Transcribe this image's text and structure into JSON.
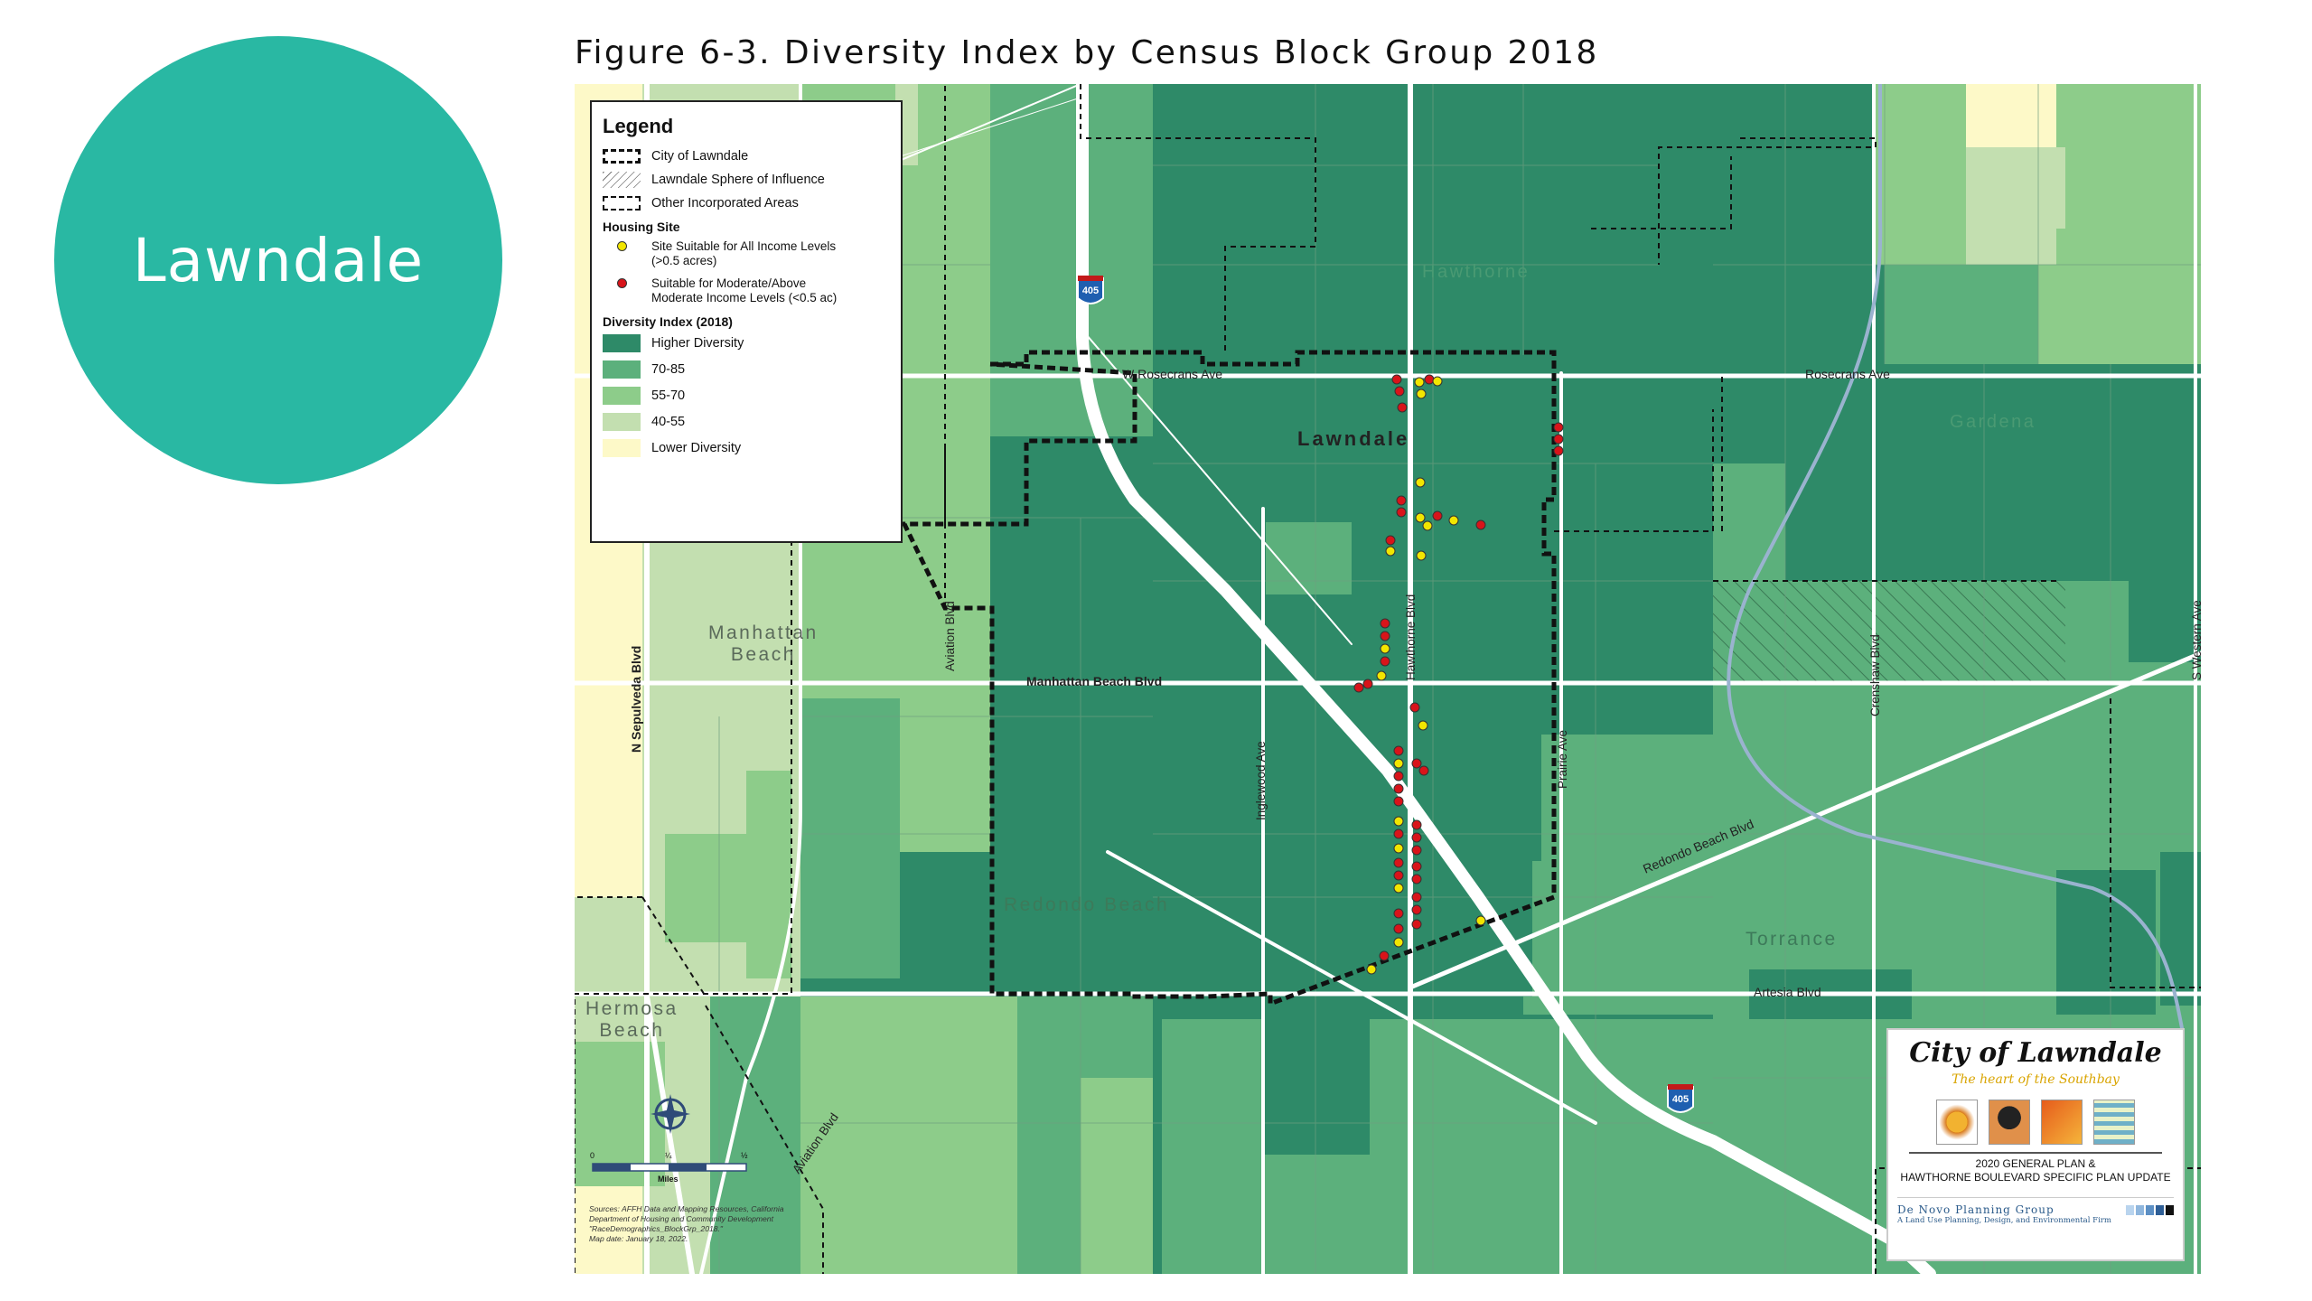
{
  "slide": {
    "heading": "Lawndale"
  },
  "figure": {
    "title": "Figure 6-3. Diversity Index by Census Block Group 2018"
  },
  "legend": {
    "title": "Legend",
    "boundaries": [
      {
        "label": "City of Lawndale",
        "style": "thick-dashed"
      },
      {
        "label": "Lawndale Sphere of Influence",
        "style": "hatched"
      },
      {
        "label": "Other Incorporated Areas",
        "style": "thin-dashed"
      }
    ],
    "housing_title": "Housing Site",
    "housing": [
      {
        "label_1": "Site Suitable for All Income Levels",
        "label_2": "(>0.5 acres)",
        "color": "#f2e600"
      },
      {
        "label_1": "Suitable for Moderate/Above",
        "label_2": "Moderate Income Levels (<0.5 ac)",
        "color": "#d8141a"
      }
    ],
    "diversity_title": "Diversity Index (2018)",
    "classes": [
      {
        "label": "Higher Diversity",
        "color": "#2e8a68"
      },
      {
        "label": "70-85",
        "color": "#5cb07c"
      },
      {
        "label": "55-70",
        "color": "#8dcc8a"
      },
      {
        "label": "40-55",
        "color": "#c3dfb0"
      },
      {
        "label": "Lower Diversity",
        "color": "#fdf9c8"
      }
    ]
  },
  "places": {
    "hawthorne": "Hawthorne",
    "lawndale": "Lawndale",
    "gardena": "Gardena",
    "manhattan_1": "Manhattan",
    "manhattan_2": "Beach",
    "redondo": "Redondo Beach",
    "torrance": "Torrance",
    "hermosa_1": "Hermosa",
    "hermosa_2": "Beach"
  },
  "roads": {
    "rosecrans_w": "W Rosecrans Ave",
    "rosecrans_e": "Rosecrans Ave",
    "manhattan_blvd": "Manhattan Beach Blvd",
    "artesia": "Artesia Blvd",
    "redondo_blvd": "Redondo Beach Blvd",
    "sepulveda": "N Sepulveda Blvd",
    "aviation_n": "Aviation Blvd",
    "aviation_s": "Aviation Blvd",
    "inglewood": "Inglewood Ave",
    "hawthorne_blvd": "Hawthorne Blvd",
    "prairie": "Prairie Ave",
    "crenshaw": "Crenshaw Blvd",
    "western": "S Western Ave",
    "freeway_shield": "405"
  },
  "scale": {
    "l0": "0",
    "l1": "¼",
    "l2": "½",
    "unit": "Miles"
  },
  "sources": {
    "line1": "Sources: AFFH Data and Mapping Resources, California",
    "line2": "Department of Housing and Community Development",
    "line3": "\"RaceDemographics_BlockGrp_2018.\"",
    "line4": "Map date: January 18, 2022."
  },
  "logo": {
    "title": "City of Lawndale",
    "tagline": "The heart of the Southbay",
    "sub1": "2020 GENERAL PLAN &",
    "sub2": "HAWTHORNE BOULEVARD SPECIFIC PLAN UPDATE",
    "firm": "De Novo Planning Group",
    "firm_tag": "A Land Use Planning, Design, and Environmental Firm"
  }
}
